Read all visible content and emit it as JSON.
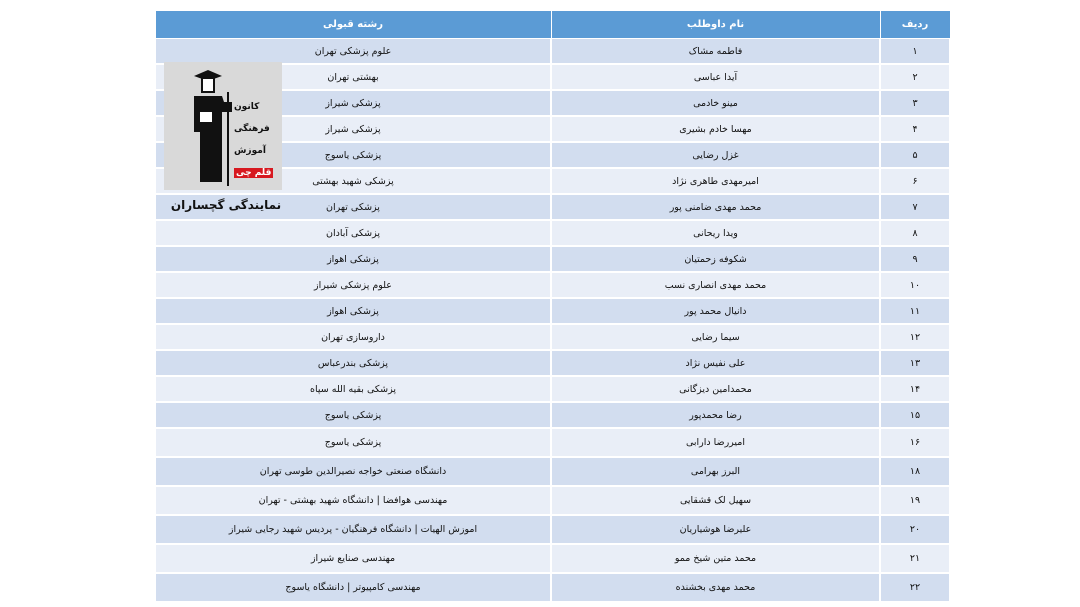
{
  "table": {
    "headers": {
      "index": "ردیف",
      "name": "نام داوطلب",
      "field": "رشته قبولی"
    },
    "rows": [
      {
        "index": "۱",
        "name": "فاطمه مشاک",
        "field": "علوم پزشکی تهران"
      },
      {
        "index": "۲",
        "name": "آیدا عباسی",
        "field": "بهشتی تهران"
      },
      {
        "index": "۳",
        "name": "مینو خادمی",
        "field": "پزشکی شیراز"
      },
      {
        "index": "۴",
        "name": "مهسا خادم بشیری",
        "field": "پزشکی شیراز"
      },
      {
        "index": "۵",
        "name": "غزل رضایی",
        "field": "پزشکی یاسوج"
      },
      {
        "index": "۶",
        "name": "امیرمهدی طاهری نژاد",
        "field": "پزشکی شهید بهشتی"
      },
      {
        "index": "۷",
        "name": "محمد مهدی ضامنی پور",
        "field": "پزشکی تهران"
      },
      {
        "index": "۸",
        "name": "ویدا ریحانی",
        "field": "پزشکی آبادان"
      },
      {
        "index": "۹",
        "name": "شکوفه زحمتیان",
        "field": "پزشکی اهواز"
      },
      {
        "index": "۱۰",
        "name": "محمد مهدی انصاری نسب",
        "field": "علوم پزشکی شیراز"
      },
      {
        "index": "۱۱",
        "name": "دانیال محمد پور",
        "field": "پزشکی اهواز"
      },
      {
        "index": "۱۲",
        "name": "سیما رضایی",
        "field": "داروسازی تهران"
      },
      {
        "index": "۱۳",
        "name": "علی نفیس نژاد",
        "field": "پزشکی بندرعباس"
      },
      {
        "index": "۱۴",
        "name": "محمدامین دیزگانی",
        "field": "پزشکی بقیه الله سپاه"
      },
      {
        "index": "۱۵",
        "name": "رضا محمدپور",
        "field": "پزشکی یاسوج"
      },
      {
        "index": "۱۶",
        "name": "امیررضا دارابی",
        "field": "پزشکی یاسوج"
      },
      {
        "index": "۱۸",
        "name": "البرز بهرامی",
        "field": "دانشگاه صنعتی خواجه نصیرالدین طوسی تهران"
      },
      {
        "index": "۱۹",
        "name": "سهیل لک قشقایی",
        "field": "مهندسی هوافضا | دانشگاه شهید بهشتی - تهران"
      },
      {
        "index": "۲۰",
        "name": "علیرضا هوشیاریان",
        "field": "اموزش الهیات | دانشگاه فرهنگیان - پردیس شهید رجایی شیراز"
      },
      {
        "index": "۲۱",
        "name": "محمد متین شیخ ممو",
        "field": "مهندسی صنایع شیراز"
      },
      {
        "index": "۲۲",
        "name": "محمد مهدی بخشنده",
        "field": "مهندسی کامپیوتر | دانشگاه یاسوج"
      }
    ]
  },
  "logo": {
    "lines": [
      "کانون",
      "فرهنگی",
      "آموزش",
      "قلم چی"
    ]
  },
  "representative": "نمایندگی گچساران",
  "colors": {
    "header": "#5b9bd5",
    "row_dark": "#d2ddef",
    "row_light": "#e9eef7",
    "logo_red": "#d71920"
  }
}
